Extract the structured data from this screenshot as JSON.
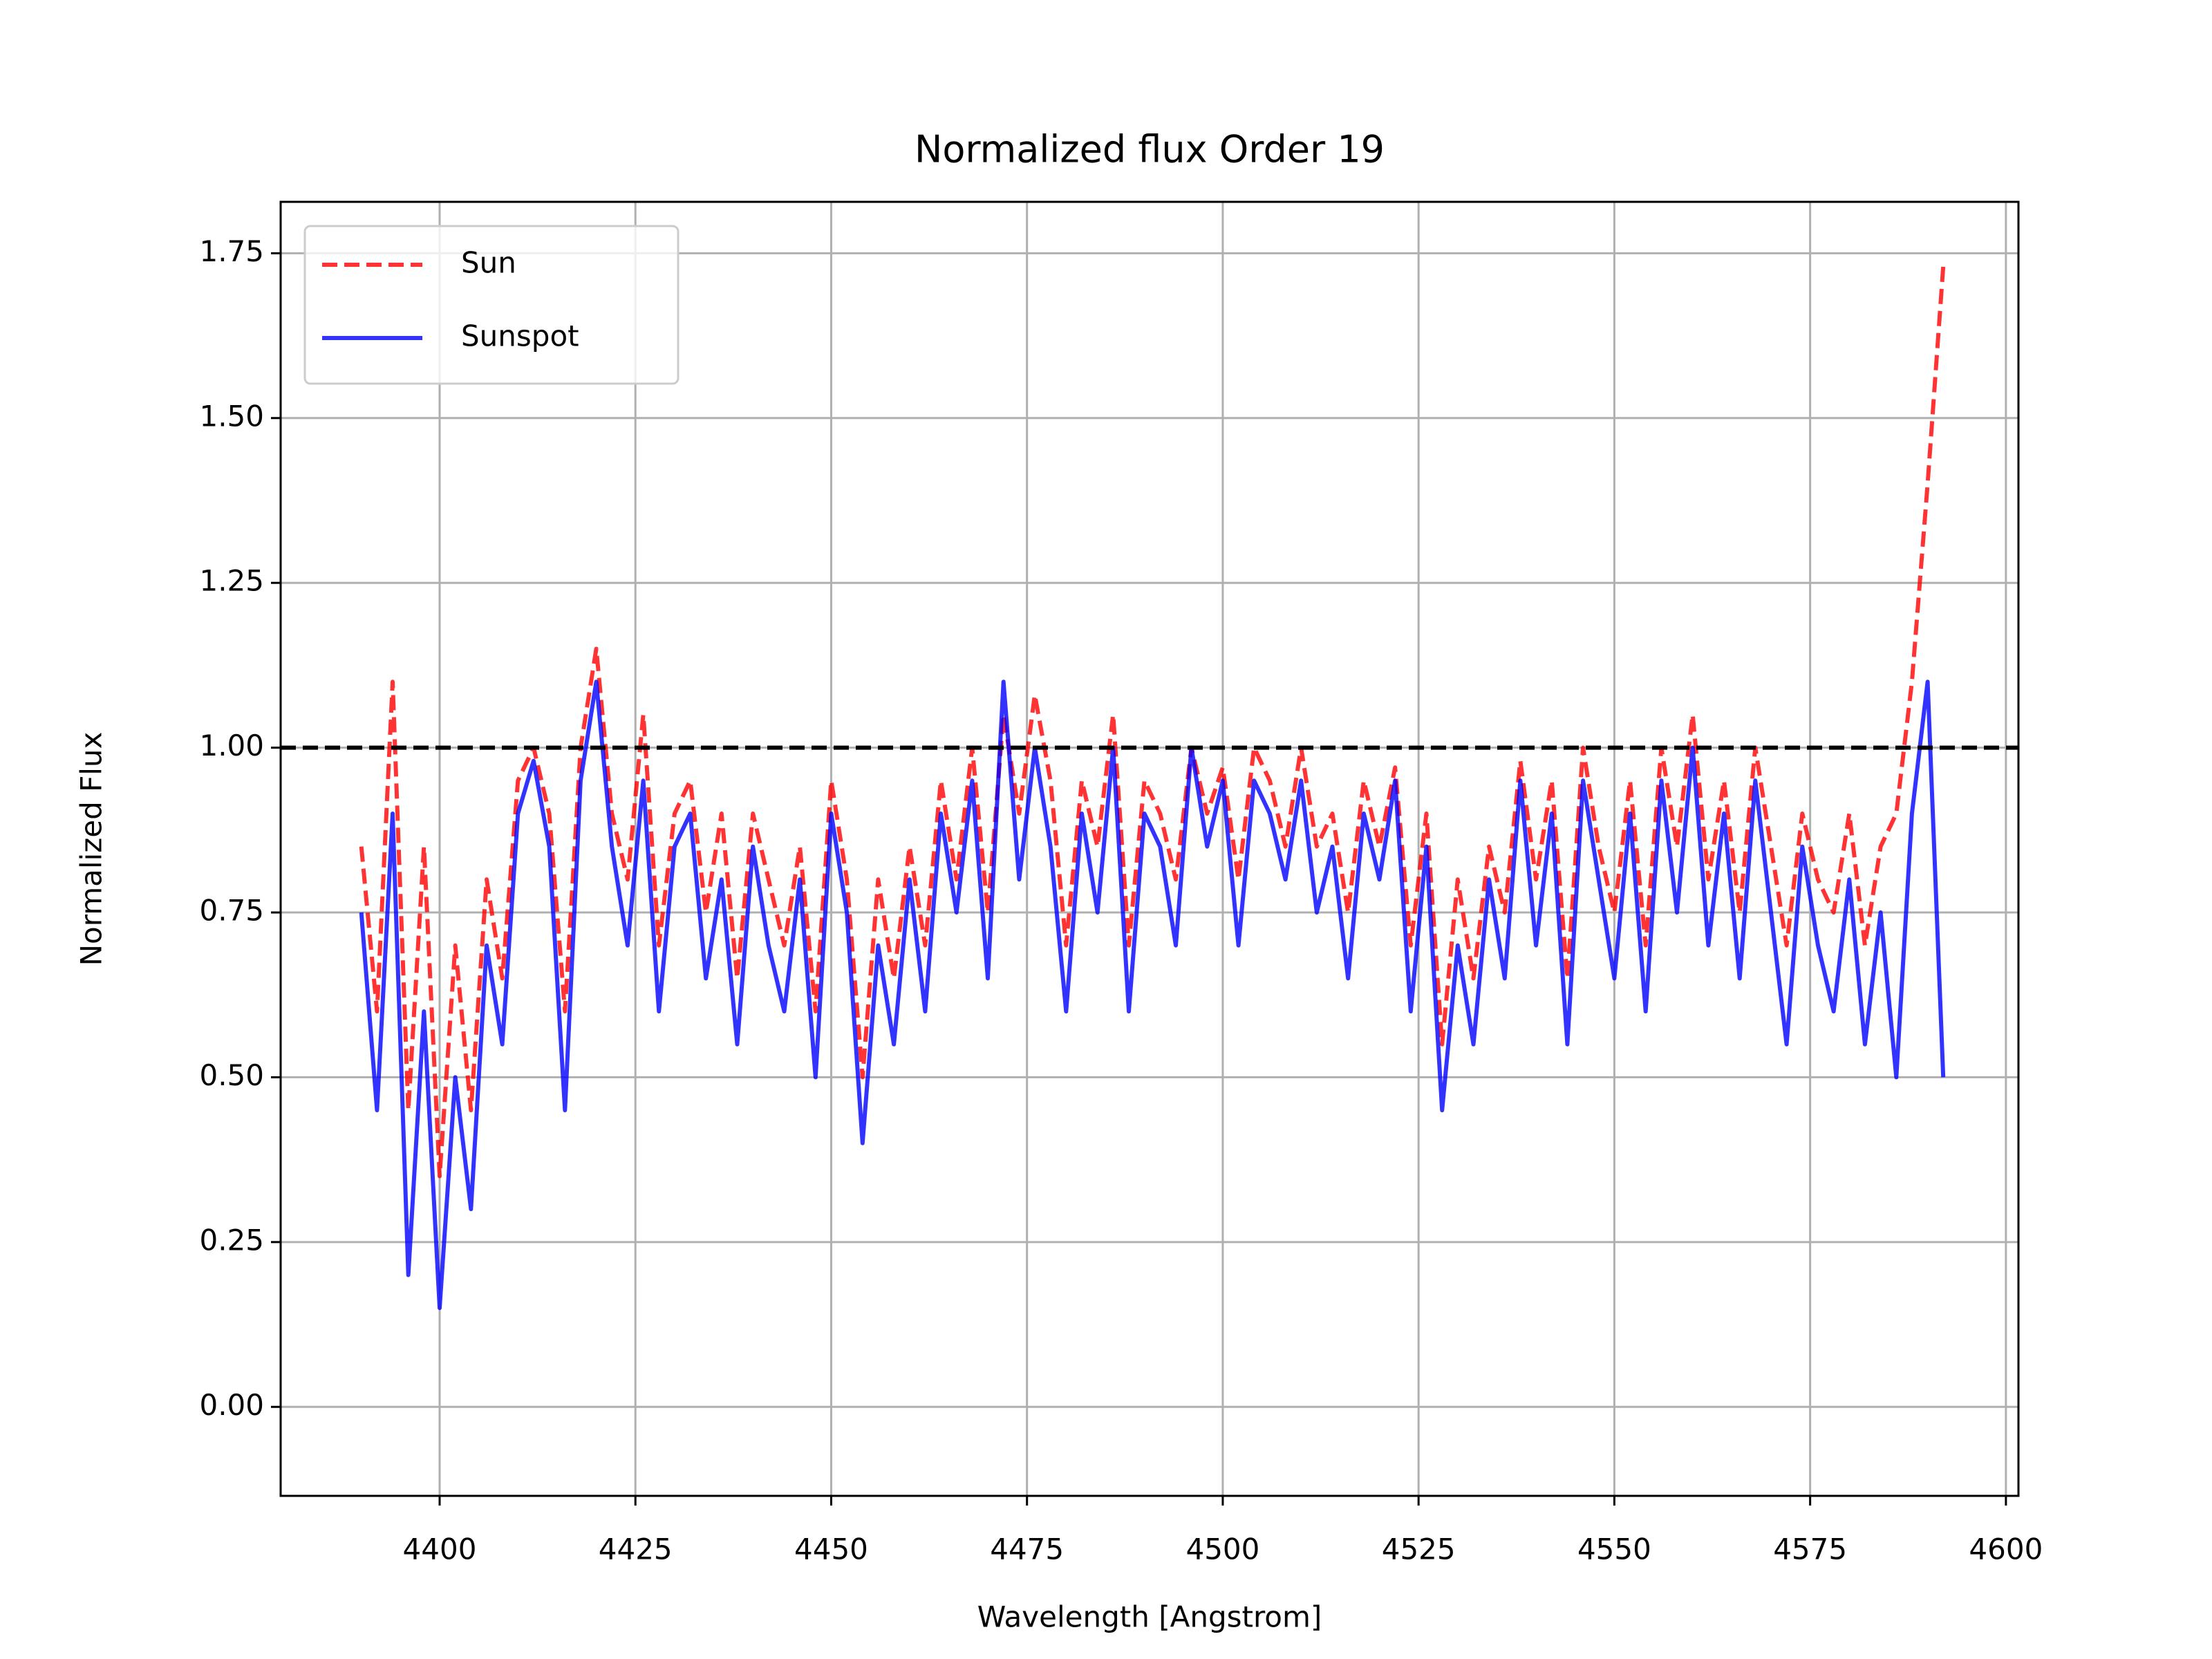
{
  "chart_data": {
    "type": "line",
    "title": "Normalized flux Order 19",
    "xlabel": "Wavelength [Angstrom]",
    "ylabel": "Normalized Flux",
    "x": [
      4390,
      4392,
      4394,
      4396,
      4398,
      4400,
      4402,
      4404,
      4406,
      4408,
      4410,
      4412,
      4414,
      4416,
      4418,
      4420,
      4422,
      4424,
      4426,
      4428,
      4430,
      4432,
      4434,
      4436,
      4438,
      4440,
      4442,
      4444,
      4446,
      4448,
      4450,
      4452,
      4454,
      4456,
      4458,
      4460,
      4462,
      4464,
      4466,
      4468,
      4470,
      4472,
      4474,
      4476,
      4478,
      4480,
      4482,
      4484,
      4486,
      4488,
      4490,
      4492,
      4494,
      4496,
      4498,
      4500,
      4502,
      4504,
      4506,
      4508,
      4510,
      4512,
      4514,
      4516,
      4518,
      4520,
      4522,
      4524,
      4526,
      4528,
      4530,
      4532,
      4534,
      4536,
      4538,
      4540,
      4542,
      4544,
      4546,
      4548,
      4550,
      4552,
      4554,
      4556,
      4558,
      4560,
      4562,
      4564,
      4566,
      4568,
      4570,
      4572,
      4574,
      4576,
      4578,
      4580,
      4582,
      4584,
      4586,
      4588,
      4590,
      4592
    ],
    "series": [
      {
        "name": "Sun",
        "color": "#ff0000",
        "dash": true,
        "values": [
          0.85,
          0.6,
          1.1,
          0.45,
          0.85,
          0.35,
          0.7,
          0.45,
          0.8,
          0.65,
          0.95,
          1.0,
          0.9,
          0.6,
          1.0,
          1.15,
          0.9,
          0.8,
          1.05,
          0.7,
          0.9,
          0.95,
          0.75,
          0.9,
          0.65,
          0.9,
          0.8,
          0.7,
          0.85,
          0.6,
          0.95,
          0.8,
          0.5,
          0.8,
          0.65,
          0.85,
          0.7,
          0.95,
          0.8,
          1.0,
          0.75,
          1.05,
          0.9,
          1.08,
          0.95,
          0.7,
          0.95,
          0.85,
          1.05,
          0.7,
          0.95,
          0.9,
          0.8,
          1.0,
          0.9,
          0.97,
          0.8,
          1.0,
          0.95,
          0.85,
          1.0,
          0.85,
          0.9,
          0.75,
          0.95,
          0.85,
          0.97,
          0.7,
          0.9,
          0.55,
          0.8,
          0.65,
          0.85,
          0.75,
          0.98,
          0.8,
          0.95,
          0.65,
          1.0,
          0.85,
          0.75,
          0.95,
          0.7,
          1.0,
          0.85,
          1.05,
          0.8,
          0.95,
          0.75,
          1.0,
          0.85,
          0.7,
          0.9,
          0.8,
          0.75,
          0.9,
          0.7,
          0.85,
          0.9,
          1.1,
          1.4,
          1.73
        ]
      },
      {
        "name": "Sunspot",
        "color": "#0000ff",
        "dash": false,
        "values": [
          0.75,
          0.45,
          0.9,
          0.2,
          0.6,
          0.15,
          0.5,
          0.3,
          0.7,
          0.55,
          0.9,
          0.98,
          0.85,
          0.45,
          0.95,
          1.1,
          0.85,
          0.7,
          0.95,
          0.6,
          0.85,
          0.9,
          0.65,
          0.8,
          0.55,
          0.85,
          0.7,
          0.6,
          0.8,
          0.5,
          0.9,
          0.75,
          0.4,
          0.7,
          0.55,
          0.8,
          0.6,
          0.9,
          0.75,
          0.95,
          0.65,
          1.1,
          0.8,
          1.0,
          0.85,
          0.6,
          0.9,
          0.75,
          1.0,
          0.6,
          0.9,
          0.85,
          0.7,
          1.0,
          0.85,
          0.95,
          0.7,
          0.95,
          0.9,
          0.8,
          0.95,
          0.75,
          0.85,
          0.65,
          0.9,
          0.8,
          0.95,
          0.6,
          0.85,
          0.45,
          0.7,
          0.55,
          0.8,
          0.65,
          0.95,
          0.7,
          0.9,
          0.55,
          0.95,
          0.8,
          0.65,
          0.9,
          0.6,
          0.95,
          0.75,
          1.0,
          0.7,
          0.9,
          0.65,
          0.95,
          0.75,
          0.55,
          0.85,
          0.7,
          0.6,
          0.8,
          0.55,
          0.75,
          0.5,
          0.9,
          1.1,
          0.5
        ]
      }
    ],
    "hline": 1.0,
    "xlim": [
      4379.7,
      4601.6
    ],
    "ylim": [
      -0.135,
      1.828
    ],
    "xticks": [
      4400,
      4425,
      4450,
      4475,
      4500,
      4525,
      4550,
      4575,
      4600
    ],
    "yticks": [
      {
        "value": 0,
        "label": "0.00"
      },
      0.25,
      {
        "value": 0.5,
        "label": "0.50"
      },
      0.75,
      {
        "value": 1,
        "label": "1.00"
      },
      1.25,
      {
        "value": 1.5,
        "label": "1.50"
      },
      1.75
    ],
    "grid": true,
    "legend": "upper left"
  }
}
